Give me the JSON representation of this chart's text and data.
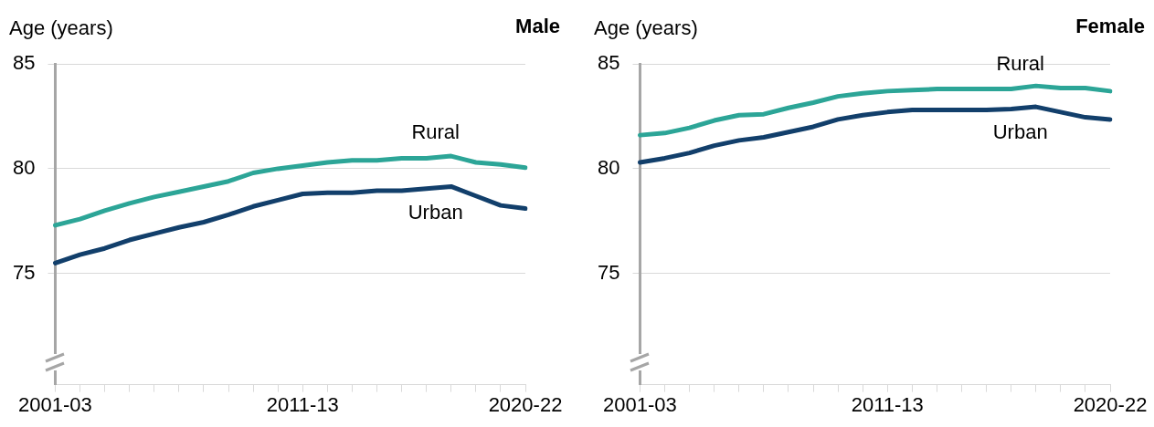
{
  "chart_data": [
    {
      "type": "line",
      "title": "Male",
      "ylabel": "Age (years)",
      "categories": [
        "2001-03",
        null,
        null,
        null,
        null,
        null,
        null,
        null,
        null,
        null,
        "2011-13",
        null,
        null,
        null,
        null,
        null,
        null,
        null,
        null,
        "2020-22"
      ],
      "ylim": [
        69.7,
        85
      ],
      "yticks": [
        75,
        80,
        85
      ],
      "grid": "y",
      "legend": false,
      "marker": "none",
      "line_style": "solid",
      "series": [
        {
          "name": "Rural",
          "color": "#2ca597",
          "values": [
            77.3,
            77.6,
            78.0,
            78.35,
            78.65,
            78.9,
            79.15,
            79.4,
            79.8,
            80.0,
            80.15,
            80.3,
            80.4,
            80.4,
            80.5,
            80.5,
            80.6,
            80.3,
            80.2,
            80.05
          ]
        },
        {
          "name": "Urban",
          "color": "#123f6b",
          "values": [
            75.5,
            75.9,
            76.2,
            76.6,
            76.9,
            77.2,
            77.45,
            77.8,
            78.2,
            78.5,
            78.8,
            78.85,
            78.85,
            78.95,
            78.95,
            79.05,
            79.15,
            78.7,
            78.25,
            78.1
          ]
        }
      ]
    },
    {
      "type": "line",
      "title": "Female",
      "ylabel": "Age (years)",
      "categories": [
        "2001-03",
        null,
        null,
        null,
        null,
        null,
        null,
        null,
        null,
        null,
        "2011-13",
        null,
        null,
        null,
        null,
        null,
        null,
        null,
        null,
        "2020-22"
      ],
      "ylim": [
        69.7,
        85
      ],
      "yticks": [
        75,
        80,
        85
      ],
      "grid": "y",
      "legend": false,
      "marker": "none",
      "line_style": "solid",
      "series": [
        {
          "name": "Rural",
          "color": "#2ca597",
          "values": [
            81.6,
            81.7,
            81.95,
            82.3,
            82.55,
            82.6,
            82.9,
            83.15,
            83.45,
            83.6,
            83.7,
            83.75,
            83.8,
            83.8,
            83.8,
            83.8,
            83.95,
            83.85,
            83.85,
            83.7
          ]
        },
        {
          "name": "Urban",
          "color": "#123f6b",
          "values": [
            80.3,
            80.5,
            80.75,
            81.1,
            81.35,
            81.5,
            81.75,
            82.0,
            82.35,
            82.55,
            82.7,
            82.8,
            82.8,
            82.8,
            82.8,
            82.85,
            82.95,
            82.7,
            82.45,
            82.35
          ]
        }
      ]
    }
  ]
}
